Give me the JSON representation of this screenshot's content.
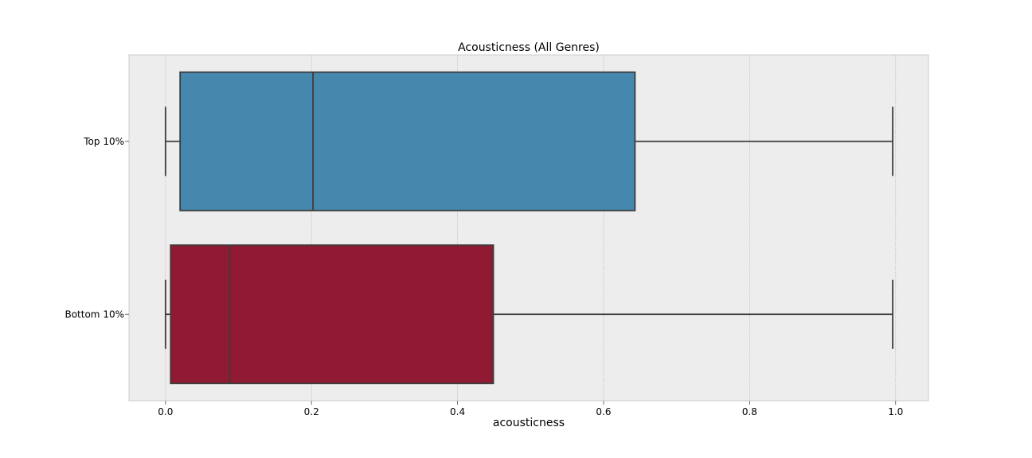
{
  "chart_data": {
    "type": "boxplot",
    "title": "Acousticness (All Genres)",
    "xlabel": "acousticness",
    "ylabel": "",
    "xlim": [
      -0.05,
      1.045
    ],
    "xticks": [
      0.0,
      0.2,
      0.4,
      0.6,
      0.8,
      1.0
    ],
    "xtick_labels": [
      "0.0",
      "0.2",
      "0.4",
      "0.6",
      "0.8",
      "1.0"
    ],
    "grid": true,
    "categories": [
      "Top 10%",
      "Bottom 10%"
    ],
    "series": [
      {
        "category": "Top 10%",
        "color": "#4587ad",
        "whisker_low": 0.0,
        "q1": 0.02,
        "median": 0.202,
        "q3": 0.643,
        "whisker_high": 0.996
      },
      {
        "category": "Bottom 10%",
        "color": "#901a32",
        "whisker_low": 0.0,
        "q1": 0.007,
        "median": 0.088,
        "q3": 0.449,
        "whisker_high": 0.996
      }
    ]
  }
}
